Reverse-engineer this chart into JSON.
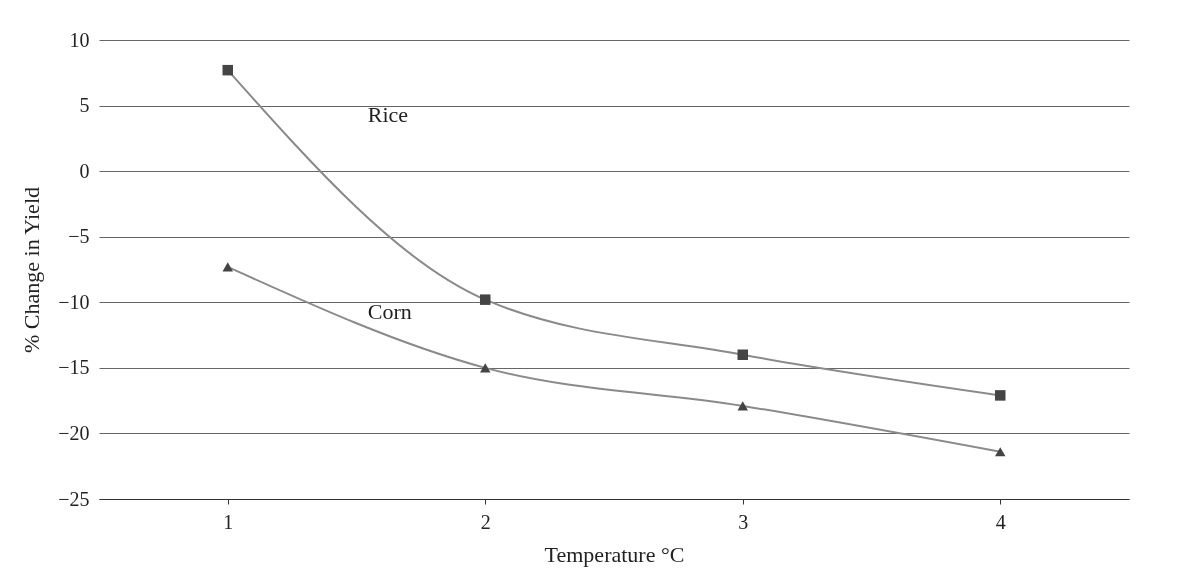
{
  "chart_data": {
    "type": "line",
    "xlabel": "Temperature °C",
    "ylabel": "% Change in Yield",
    "categories": [
      "1",
      "2",
      "3",
      "4"
    ],
    "series": [
      {
        "name": "Rice",
        "color": "#8a8a8a",
        "marker": "square",
        "values": [
          7.7,
          -9.8,
          -14.0,
          -17.1
        ]
      },
      {
        "name": "Corn",
        "color": "#8a8a8a",
        "marker": "triangle",
        "values": [
          -7.3,
          -15.0,
          -17.9,
          -21.4
        ]
      }
    ],
    "ylim": [
      -25,
      10
    ],
    "yticks": [
      -25,
      -20,
      -15,
      -10,
      -5,
      0,
      5,
      10
    ],
    "grid": "y",
    "legend": false
  }
}
